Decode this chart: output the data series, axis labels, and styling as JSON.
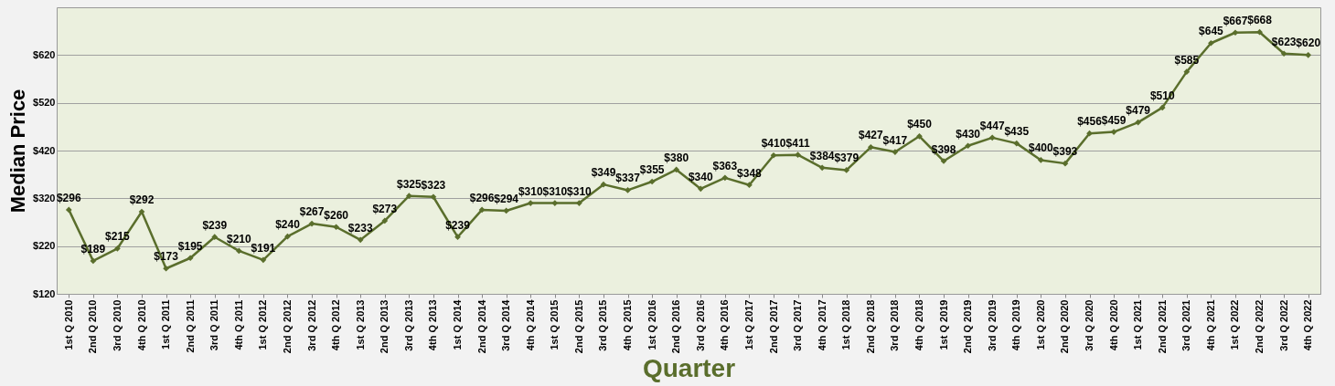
{
  "chart_data": {
    "type": "line",
    "xlabel": "Quarter",
    "ylabel": "Median Price",
    "categories": [
      "1st Q 2010",
      "2nd Q 2010",
      "3rd Q 2010",
      "4th Q 2010",
      "1st Q 2011",
      "2nd Q 2011",
      "3rd Q 2011",
      "4th Q 2011",
      "1st Q 2012",
      "2nd Q 2012",
      "3rd Q 2012",
      "4th Q 2012",
      "1st Q 2013",
      "2nd Q 2013",
      "3rd Q 2013",
      "4th Q 2013",
      "1st Q 2014",
      "2nd Q 2014",
      "3rd Q 2014",
      "4th Q 2014",
      "1st Q 2015",
      "2nd Q 2015",
      "3rd Q 2015",
      "4th Q 2015",
      "1st Q 2016",
      "2nd Q 2016",
      "3rd Q 2016",
      "4th Q 2016",
      "1st Q 2017",
      "2nd Q 2017",
      "3rd Q 2017",
      "4th Q 2017",
      "1st Q 2018",
      "2nd Q 2018",
      "3rd Q 2018",
      "4th Q 2018",
      "1st Q 2019",
      "2nd Q 2019",
      "3rd Q 2019",
      "4th Q 2019",
      "1st Q 2020",
      "2nd Q 2020",
      "3rd Q 2020",
      "4th Q 2020",
      "1st Q 2021",
      "2nd Q 2021",
      "3rd Q 2021",
      "4th Q 2021",
      "1st Q 2022",
      "2nd Q 2022",
      "3rd Q 2022",
      "4th Q 2022"
    ],
    "series": [
      {
        "color": "#5a6e2c",
        "values": [
          296,
          189,
          215,
          292,
          173,
          195,
          239,
          210,
          191,
          240,
          267,
          260,
          233,
          273,
          325,
          323,
          239,
          296,
          294,
          310,
          310,
          310,
          349,
          337,
          355,
          380,
          340,
          363,
          348,
          410,
          411,
          384,
          379,
          427,
          417,
          450,
          398,
          430,
          447,
          435,
          400,
          393,
          456,
          459,
          479,
          510,
          585,
          645,
          667,
          668,
          623,
          620
        ]
      }
    ],
    "value_labels": [
      "$296",
      "$189",
      "$215",
      "$292",
      "$173",
      "$195",
      "$239",
      "$210",
      "$191",
      "$240",
      "$267",
      "$260",
      "$233",
      "$273",
      "$325",
      "$323",
      "$239",
      "$296",
      "$294",
      "$310",
      "$310",
      "$310",
      "$349",
      "$337",
      "$355",
      "$380",
      "$340",
      "$363",
      "$348",
      "$410",
      "$411",
      "$384",
      "$379",
      "$427",
      "$417",
      "$450",
      "$398",
      "$430",
      "$447",
      "$435",
      "$400",
      "$393",
      "$456",
      "$459",
      "$479",
      "$510",
      "$585",
      "$645",
      "$667",
      "$668",
      "$623",
      "$620"
    ],
    "ylim": [
      120,
      720
    ],
    "yticks": [
      {
        "value": 120,
        "label": "$120"
      },
      {
        "value": 220,
        "label": "$220"
      },
      {
        "value": 320,
        "label": "$320"
      },
      {
        "value": 420,
        "label": "$420"
      },
      {
        "value": 520,
        "label": "$520"
      },
      {
        "value": 620,
        "label": "$620"
      }
    ],
    "grid": "y",
    "marker": "diamond",
    "line_style": "solid"
  }
}
